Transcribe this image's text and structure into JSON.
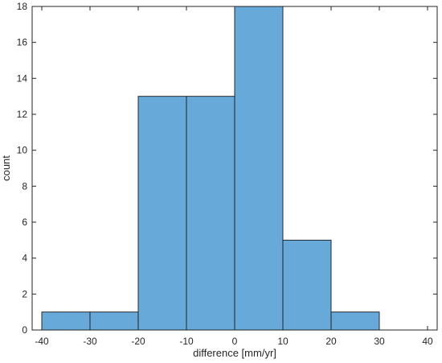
{
  "chart_data": {
    "type": "bar",
    "title": "",
    "xlabel": "difference [mm/yr]",
    "ylabel": "count",
    "xlim": [
      -42,
      42
    ],
    "ylim": [
      0,
      18
    ],
    "xticks": [
      -40,
      -30,
      -20,
      -10,
      0,
      10,
      20,
      30,
      40
    ],
    "yticks": [
      0,
      2,
      4,
      6,
      8,
      10,
      12,
      14,
      16,
      18
    ],
    "grid": false,
    "bins": [
      {
        "x0": -40,
        "x1": -30,
        "count": 1
      },
      {
        "x0": -30,
        "x1": -20,
        "count": 1
      },
      {
        "x0": -20,
        "x1": -10,
        "count": 13
      },
      {
        "x0": -10,
        "x1": 0,
        "count": 13
      },
      {
        "x0": 0,
        "x1": 10,
        "count": 18
      },
      {
        "x0": 10,
        "x1": 20,
        "count": 5
      },
      {
        "x0": 20,
        "x1": 30,
        "count": 1
      }
    ],
    "bar_color": "#67a9d8",
    "edge_color": "#1a1a1a"
  }
}
